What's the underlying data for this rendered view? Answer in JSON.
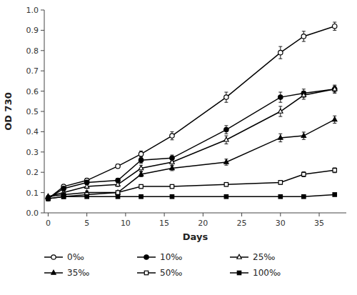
{
  "chart_data": {
    "type": "line",
    "ylabel": "OD 730",
    "xlabel": "Days",
    "x": [
      0,
      2,
      5,
      9,
      12,
      16,
      23,
      30,
      33,
      37
    ],
    "xlim": [
      -0.5,
      38.5
    ],
    "ylim": [
      0.0,
      1.0
    ],
    "xticks": [
      0,
      5,
      10,
      15,
      20,
      25,
      30,
      35
    ],
    "yticks": [
      {
        "value": 0.0,
        "label": "0.0"
      },
      0.1,
      0.2,
      0.3,
      0.4,
      0.5,
      0.6,
      0.7,
      0.8,
      0.9,
      {
        "value": 1.0,
        "label": "1.0"
      }
    ],
    "grid": false,
    "legend": "bottom",
    "series": [
      {
        "name": "0‰",
        "color": "#000000",
        "marker": "circle-open",
        "values": [
          0.07,
          0.13,
          0.16,
          0.23,
          0.29,
          0.38,
          0.57,
          0.79,
          0.87,
          0.92
        ],
        "errors": [
          0.005,
          0.008,
          0.01,
          0.01,
          0.015,
          0.02,
          0.025,
          0.03,
          0.025,
          0.02
        ]
      },
      {
        "name": "10‰",
        "color": "#000000",
        "marker": "circle",
        "values": [
          0.07,
          0.12,
          0.15,
          0.16,
          0.26,
          0.27,
          0.41,
          0.57,
          0.59,
          0.61
        ],
        "errors": [
          0.005,
          0.007,
          0.01,
          0.01,
          0.015,
          0.015,
          0.02,
          0.025,
          0.02,
          0.02
        ]
      },
      {
        "name": "25‰",
        "color": "#000000",
        "marker": "triangle-open",
        "values": [
          0.08,
          0.1,
          0.13,
          0.14,
          0.22,
          0.25,
          0.36,
          0.5,
          0.58,
          0.61
        ],
        "errors": [
          0.005,
          0.007,
          0.01,
          0.01,
          0.015,
          0.015,
          0.02,
          0.025,
          0.02,
          0.015
        ]
      },
      {
        "name": "35‰",
        "color": "#000000",
        "marker": "triangle",
        "values": [
          0.08,
          0.09,
          0.1,
          0.1,
          0.19,
          0.22,
          0.25,
          0.37,
          0.38,
          0.46
        ],
        "errors": [
          0.005,
          0.006,
          0.008,
          0.008,
          0.012,
          0.012,
          0.015,
          0.02,
          0.018,
          0.018
        ]
      },
      {
        "name": "50‰",
        "color": "#000000",
        "marker": "square-open",
        "values": [
          0.07,
          0.08,
          0.09,
          0.1,
          0.13,
          0.13,
          0.14,
          0.15,
          0.19,
          0.21
        ],
        "errors": [
          0.004,
          0.005,
          0.006,
          0.007,
          0.009,
          0.009,
          0.009,
          0.01,
          0.012,
          0.012
        ]
      },
      {
        "name": "100‰",
        "color": "#000000",
        "marker": "square",
        "values": [
          0.07,
          0.08,
          0.08,
          0.08,
          0.08,
          0.08,
          0.08,
          0.08,
          0.08,
          0.09
        ],
        "errors": [
          0.003,
          0.004,
          0.004,
          0.004,
          0.004,
          0.004,
          0.004,
          0.004,
          0.004,
          0.005
        ]
      }
    ]
  }
}
